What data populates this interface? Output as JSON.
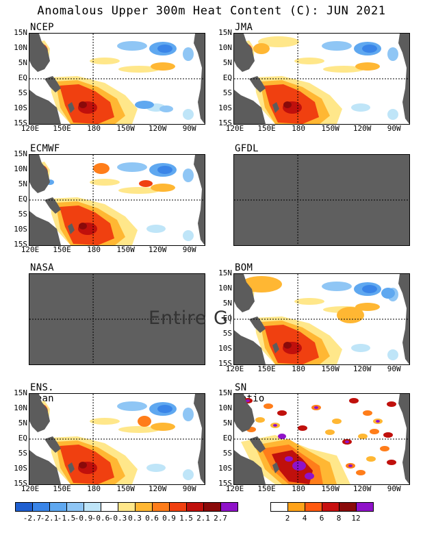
{
  "title": "Anomalous Upper 300m Heat Content (C): JUN 2021",
  "panels": {
    "ncep": {
      "title": "NCEP"
    },
    "jma": {
      "title": "JMA"
    },
    "ecmwf": {
      "title": "ECMWF"
    },
    "gfdl": {
      "title": "GFDL"
    },
    "nasa": {
      "title": "NASA"
    },
    "bom": {
      "title": "BOM"
    },
    "ens": {
      "title": "ENS. Mean"
    },
    "sn": {
      "title": "SN Ratio"
    }
  },
  "lat_labels": [
    "15N",
    "10N",
    "5N",
    "EQ",
    "5S",
    "10S",
    "15S"
  ],
  "lon_labels": [
    "120E",
    "150E",
    "180",
    "150W",
    "120W",
    "90W"
  ],
  "overlay_text": "Entire Gr",
  "anomaly_colorbar": {
    "colors": [
      "#1f5fd0",
      "#3a85e8",
      "#5fa8f0",
      "#8fc6f5",
      "#bfe5f8",
      "#ffffff",
      "#ffe78a",
      "#ffb733",
      "#ff7d1a",
      "#f04010",
      "#c0100c",
      "#8a0a0a",
      "#8f12c9"
    ],
    "labels": [
      "-2.7",
      "-2.1",
      "-1.5",
      "-0.9",
      "-0.6",
      "-0.3",
      "0.3",
      "0.6",
      "0.9",
      "1.5",
      "2.1",
      "2.7"
    ]
  },
  "sn_colorbar": {
    "colors": [
      "#ffffff",
      "#ffa31a",
      "#ff5a10",
      "#c81010",
      "#8a0a0a",
      "#8f12c9"
    ],
    "labels": [
      "2",
      "4",
      "6",
      "8",
      "12"
    ]
  }
}
